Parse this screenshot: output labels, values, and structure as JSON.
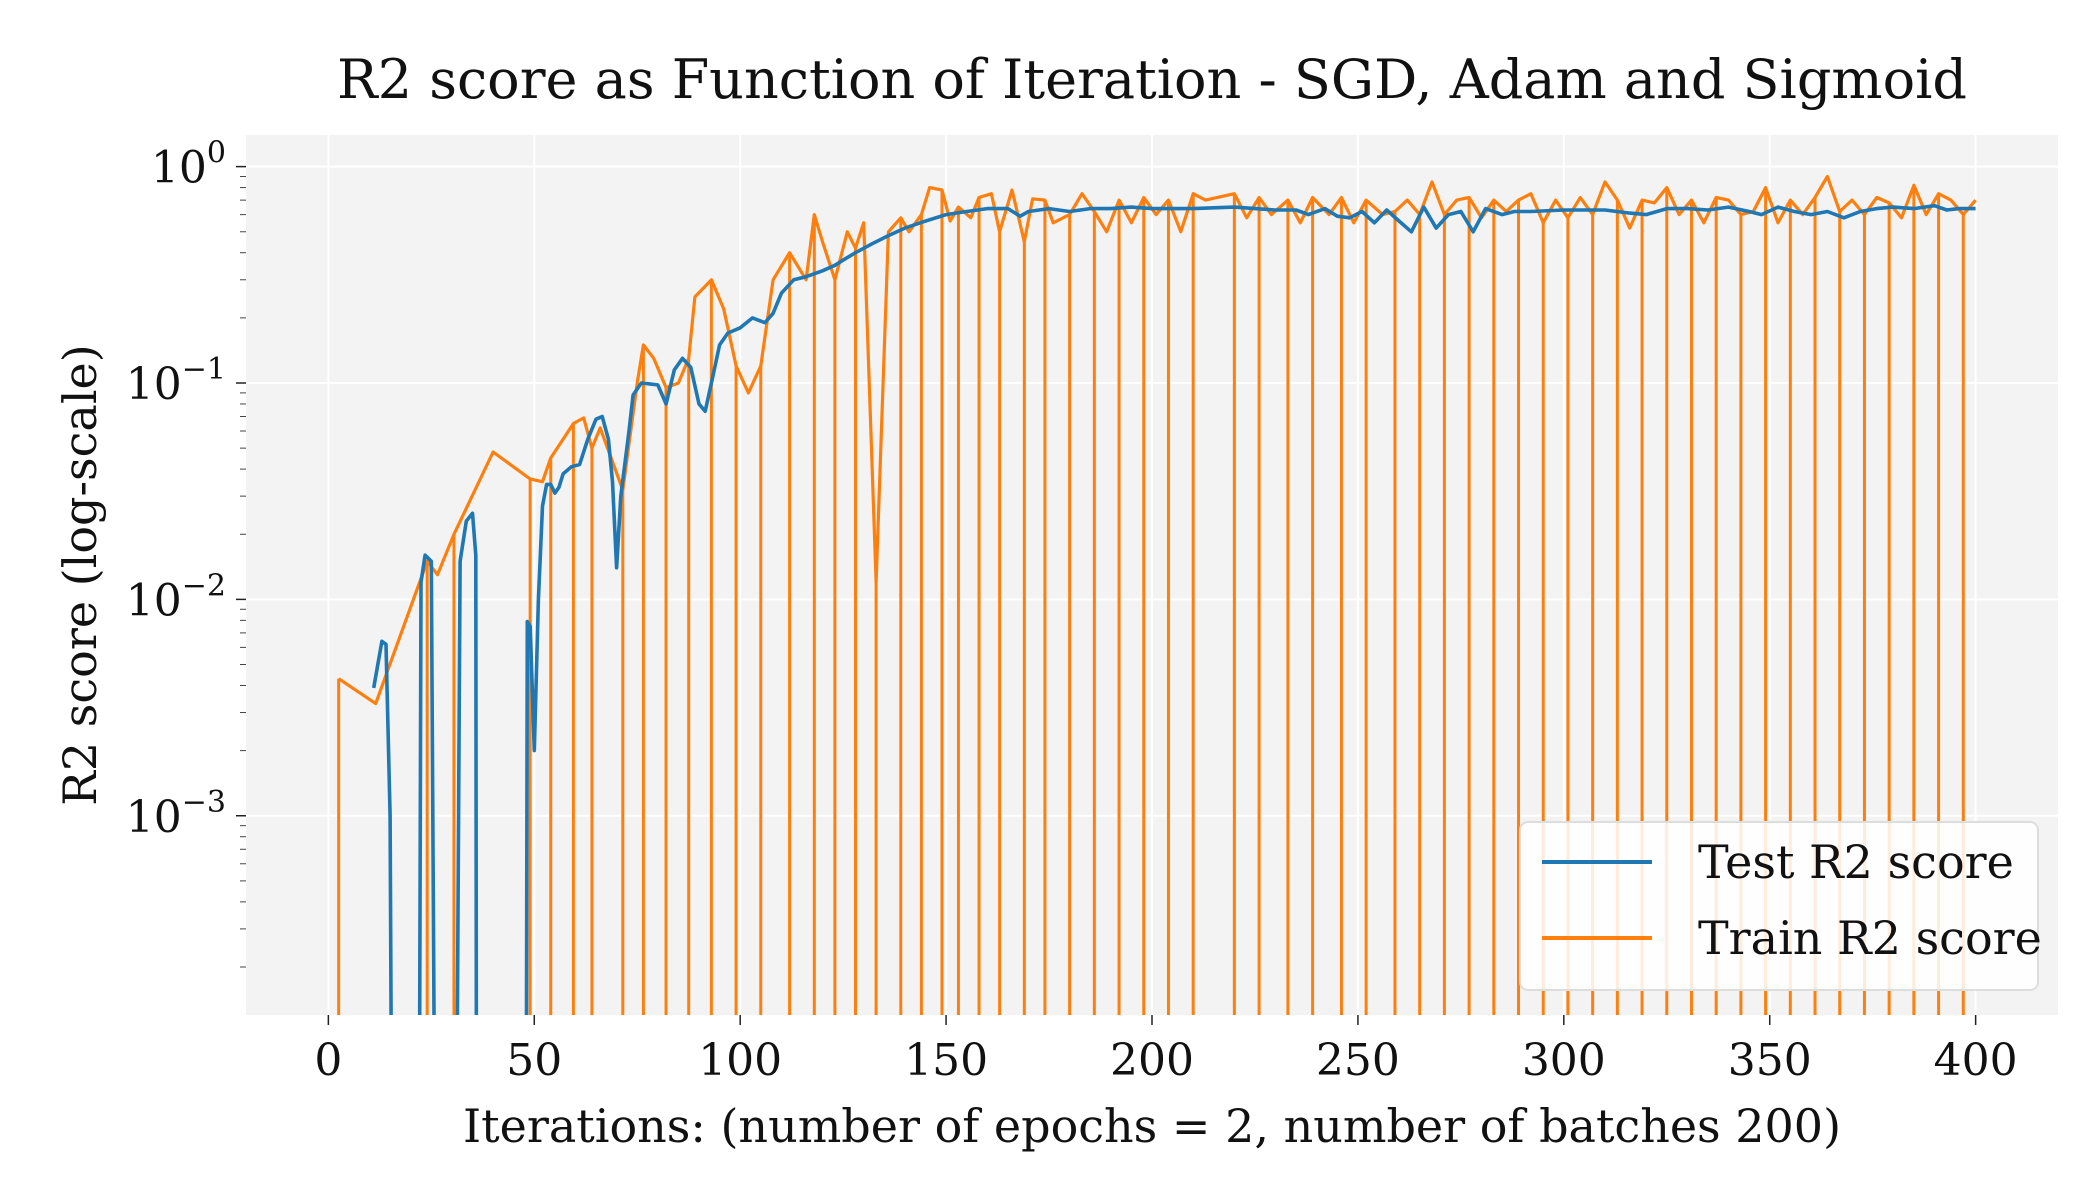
{
  "chart_data": {
    "type": "line",
    "title": "R2 score as Function of Iteration - SGD, Adam and Sigmoid",
    "xlabel": "Iterations: (number of epochs = 2, number of batches 200)",
    "ylabel": "R2 score (log-scale)",
    "xlim": [
      -20,
      420
    ],
    "ylim": [
      0.00012,
      1.4
    ],
    "yscale": "log",
    "grid": true,
    "legend_position": "lower-right",
    "x_ticks": [
      0,
      50,
      100,
      150,
      200,
      250,
      300,
      350,
      400
    ],
    "y_ticks": [
      {
        "value": 0.001,
        "base": "10",
        "exp": "−3"
      },
      {
        "value": 0.01,
        "base": "10",
        "exp": "−2"
      },
      {
        "value": 0.1,
        "base": "10",
        "exp": "−1"
      },
      {
        "value": 1,
        "base": "10",
        "exp": "0"
      }
    ],
    "colors": {
      "test": "#1f77b4",
      "train": "#ff7f0e",
      "plot_bg": "#f3f3f3",
      "grid": "#ffffff"
    },
    "series": [
      {
        "name": "Test R2 score",
        "key": "test",
        "points": [
          [
            11,
            0.0039
          ],
          [
            13,
            0.0064
          ],
          [
            14,
            0.0062
          ],
          [
            15,
            0.001
          ],
          [
            15.5,
            1e-05
          ],
          [
            22,
            1e-05
          ],
          [
            22.5,
            0.012
          ],
          [
            23.5,
            0.016
          ],
          [
            25,
            0.015
          ],
          [
            26,
            1e-05
          ],
          [
            31,
            1e-05
          ],
          [
            32,
            0.015
          ],
          [
            33.5,
            0.023
          ],
          [
            35,
            0.025
          ],
          [
            35.8,
            0.016
          ],
          [
            36,
            1e-05
          ],
          [
            48,
            1e-05
          ],
          [
            48.3,
            0.0079
          ],
          [
            49,
            0.0075
          ],
          [
            50,
            0.002
          ],
          [
            51,
            0.01
          ],
          [
            52,
            0.027
          ],
          [
            53,
            0.034
          ],
          [
            54,
            0.034
          ],
          [
            55,
            0.031
          ],
          [
            56,
            0.033
          ],
          [
            57,
            0.038
          ],
          [
            59,
            0.041
          ],
          [
            61,
            0.042
          ],
          [
            63,
            0.055
          ],
          [
            65,
            0.068
          ],
          [
            66.5,
            0.07
          ],
          [
            68,
            0.055
          ],
          [
            69,
            0.035
          ],
          [
            70,
            0.014
          ],
          [
            71,
            0.03
          ],
          [
            73,
            0.06
          ],
          [
            74,
            0.088
          ],
          [
            76,
            0.1
          ],
          [
            78,
            0.099
          ],
          [
            80,
            0.098
          ],
          [
            82,
            0.08
          ],
          [
            84,
            0.115
          ],
          [
            86,
            0.13
          ],
          [
            88,
            0.118
          ],
          [
            90,
            0.08
          ],
          [
            91.5,
            0.074
          ],
          [
            93,
            0.1
          ],
          [
            95,
            0.15
          ],
          [
            97,
            0.17
          ],
          [
            100,
            0.18
          ],
          [
            103,
            0.2
          ],
          [
            106,
            0.19
          ],
          [
            108,
            0.21
          ],
          [
            110,
            0.26
          ],
          [
            113,
            0.3
          ],
          [
            116,
            0.31
          ],
          [
            120,
            0.33
          ],
          [
            123,
            0.35
          ],
          [
            125,
            0.37
          ],
          [
            128,
            0.4
          ],
          [
            132,
            0.44
          ],
          [
            136,
            0.48
          ],
          [
            140,
            0.52
          ],
          [
            145,
            0.56
          ],
          [
            150,
            0.6
          ],
          [
            155,
            0.62
          ],
          [
            160,
            0.64
          ],
          [
            165,
            0.64
          ],
          [
            168,
            0.59
          ],
          [
            170,
            0.62
          ],
          [
            175,
            0.64
          ],
          [
            180,
            0.62
          ],
          [
            185,
            0.64
          ],
          [
            190,
            0.64
          ],
          [
            195,
            0.65
          ],
          [
            200,
            0.64
          ],
          [
            205,
            0.64
          ],
          [
            210,
            0.64
          ],
          [
            220,
            0.65
          ],
          [
            225,
            0.64
          ],
          [
            230,
            0.63
          ],
          [
            235,
            0.63
          ],
          [
            238,
            0.6
          ],
          [
            242,
            0.64
          ],
          [
            245,
            0.59
          ],
          [
            248,
            0.58
          ],
          [
            251,
            0.62
          ],
          [
            254,
            0.55
          ],
          [
            257,
            0.63
          ],
          [
            260,
            0.56
          ],
          [
            263,
            0.5
          ],
          [
            266,
            0.65
          ],
          [
            269,
            0.52
          ],
          [
            272,
            0.6
          ],
          [
            275,
            0.62
          ],
          [
            278,
            0.5
          ],
          [
            281,
            0.64
          ],
          [
            285,
            0.6
          ],
          [
            288,
            0.62
          ],
          [
            292,
            0.62
          ],
          [
            300,
            0.63
          ],
          [
            305,
            0.63
          ],
          [
            310,
            0.63
          ],
          [
            316,
            0.61
          ],
          [
            320,
            0.6
          ],
          [
            325,
            0.64
          ],
          [
            330,
            0.64
          ],
          [
            335,
            0.63
          ],
          [
            340,
            0.65
          ],
          [
            345,
            0.62
          ],
          [
            348,
            0.6
          ],
          [
            352,
            0.65
          ],
          [
            356,
            0.62
          ],
          [
            360,
            0.6
          ],
          [
            364,
            0.62
          ],
          [
            368,
            0.58
          ],
          [
            372,
            0.62
          ],
          [
            376,
            0.64
          ],
          [
            380,
            0.65
          ],
          [
            385,
            0.64
          ],
          [
            390,
            0.66
          ],
          [
            393,
            0.63
          ],
          [
            396,
            0.64
          ],
          [
            400,
            0.64
          ]
        ]
      },
      {
        "name": "Train R2 score",
        "key": "train",
        "points": [
          [
            2.5,
            0.0043
          ],
          [
            11.5,
            0.0033
          ],
          [
            24,
            0.015
          ],
          [
            26.5,
            0.013
          ],
          [
            30.5,
            0.02
          ],
          [
            40,
            0.048
          ],
          [
            49,
            0.036
          ],
          [
            52,
            0.035
          ],
          [
            54,
            0.045
          ],
          [
            57,
            0.055
          ],
          [
            59.5,
            0.065
          ],
          [
            62,
            0.069
          ],
          [
            64,
            0.05
          ],
          [
            66,
            0.062
          ],
          [
            71.5,
            0.032
          ],
          [
            75,
            0.1
          ],
          [
            76.5,
            0.15
          ],
          [
            79,
            0.13
          ],
          [
            82,
            0.095
          ],
          [
            85,
            0.1
          ],
          [
            87.5,
            0.13
          ],
          [
            89,
            0.25
          ],
          [
            93,
            0.3
          ],
          [
            96,
            0.22
          ],
          [
            99,
            0.12
          ],
          [
            102,
            0.09
          ],
          [
            105,
            0.12
          ],
          [
            108,
            0.3
          ],
          [
            112,
            0.4
          ],
          [
            116,
            0.3
          ],
          [
            118,
            0.6
          ],
          [
            120,
            0.45
          ],
          [
            123,
            0.3
          ],
          [
            126,
            0.5
          ],
          [
            128,
            0.42
          ],
          [
            130,
            0.55
          ],
          [
            133,
            0.012
          ],
          [
            136,
            0.5
          ],
          [
            139,
            0.58
          ],
          [
            141,
            0.5
          ],
          [
            144,
            0.6
          ],
          [
            146,
            0.8
          ],
          [
            149,
            0.78
          ],
          [
            151,
            0.56
          ],
          [
            153,
            0.65
          ],
          [
            156,
            0.58
          ],
          [
            158,
            0.72
          ],
          [
            161,
            0.75
          ],
          [
            163,
            0.5
          ],
          [
            166,
            0.78
          ],
          [
            169,
            0.45
          ],
          [
            171,
            0.71
          ],
          [
            174,
            0.7
          ],
          [
            176,
            0.55
          ],
          [
            180,
            0.6
          ],
          [
            183,
            0.75
          ],
          [
            186,
            0.62
          ],
          [
            189,
            0.5
          ],
          [
            192,
            0.7
          ],
          [
            195,
            0.55
          ],
          [
            198,
            0.72
          ],
          [
            201,
            0.6
          ],
          [
            204,
            0.7
          ],
          [
            207,
            0.5
          ],
          [
            210,
            0.75
          ],
          [
            213,
            0.7
          ],
          [
            220,
            0.75
          ],
          [
            223,
            0.58
          ],
          [
            226,
            0.72
          ],
          [
            229,
            0.6
          ],
          [
            233,
            0.7
          ],
          [
            236,
            0.55
          ],
          [
            239,
            0.72
          ],
          [
            243,
            0.6
          ],
          [
            246,
            0.72
          ],
          [
            249,
            0.55
          ],
          [
            252,
            0.7
          ],
          [
            256,
            0.6
          ],
          [
            259,
            0.62
          ],
          [
            262,
            0.7
          ],
          [
            265,
            0.6
          ],
          [
            268,
            0.85
          ],
          [
            271,
            0.6
          ],
          [
            274,
            0.7
          ],
          [
            277,
            0.72
          ],
          [
            280,
            0.58
          ],
          [
            283,
            0.7
          ],
          [
            286,
            0.62
          ],
          [
            289,
            0.7
          ],
          [
            292,
            0.75
          ],
          [
            295,
            0.55
          ],
          [
            298,
            0.7
          ],
          [
            301,
            0.58
          ],
          [
            304,
            0.72
          ],
          [
            307,
            0.6
          ],
          [
            310,
            0.85
          ],
          [
            313,
            0.7
          ],
          [
            316,
            0.52
          ],
          [
            319,
            0.7
          ],
          [
            322,
            0.68
          ],
          [
            325,
            0.8
          ],
          [
            328,
            0.6
          ],
          [
            331,
            0.7
          ],
          [
            334,
            0.55
          ],
          [
            337,
            0.72
          ],
          [
            340,
            0.7
          ],
          [
            343,
            0.6
          ],
          [
            346,
            0.62
          ],
          [
            349,
            0.8
          ],
          [
            352,
            0.55
          ],
          [
            355,
            0.7
          ],
          [
            358,
            0.6
          ],
          [
            361,
            0.72
          ],
          [
            364,
            0.9
          ],
          [
            367,
            0.62
          ],
          [
            370,
            0.7
          ],
          [
            373,
            0.6
          ],
          [
            376,
            0.72
          ],
          [
            379,
            0.68
          ],
          [
            382,
            0.58
          ],
          [
            385,
            0.82
          ],
          [
            388,
            0.6
          ],
          [
            391,
            0.75
          ],
          [
            394,
            0.7
          ],
          [
            397,
            0.6
          ],
          [
            400,
            0.7
          ]
        ]
      }
    ]
  }
}
